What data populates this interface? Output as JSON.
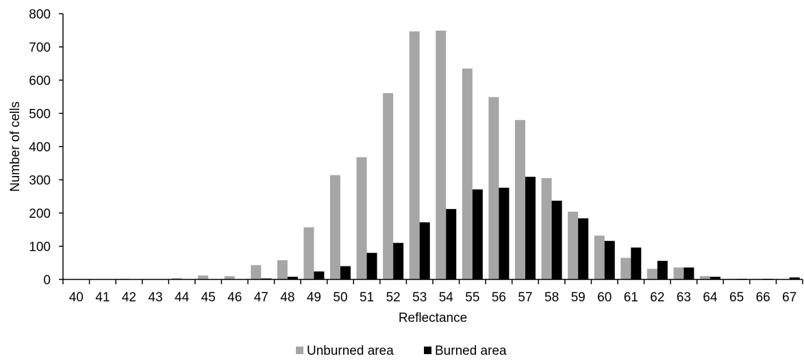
{
  "chart_data": {
    "type": "bar",
    "xlabel": "Reflectance",
    "ylabel": "Number of cells",
    "ylim": [
      0,
      800
    ],
    "yticks": [
      0,
      100,
      200,
      300,
      400,
      500,
      600,
      700,
      800
    ],
    "grid": false,
    "legend_position": "bottom",
    "categories": [
      "40",
      "41",
      "42",
      "43",
      "44",
      "45",
      "46",
      "47",
      "48",
      "49",
      "50",
      "51",
      "52",
      "53",
      "54",
      "55",
      "56",
      "57",
      "58",
      "59",
      "60",
      "61",
      "62",
      "63",
      "64",
      "65",
      "66",
      "67"
    ],
    "series": [
      {
        "name": "Unburned area",
        "color": "#a6a6a6",
        "values": [
          0,
          0,
          2,
          0,
          4,
          12,
          10,
          43,
          58,
          157,
          314,
          368,
          561,
          747,
          749,
          635,
          549,
          480,
          305,
          204,
          132,
          65,
          32,
          36,
          10,
          2,
          2,
          0
        ]
      },
      {
        "name": "Burned area",
        "color": "#000000",
        "values": [
          0,
          0,
          0,
          0,
          0,
          0,
          0,
          3,
          8,
          24,
          40,
          80,
          110,
          172,
          212,
          271,
          276,
          309,
          237,
          184,
          116,
          96,
          56,
          36,
          8,
          2,
          2,
          6
        ]
      }
    ]
  }
}
